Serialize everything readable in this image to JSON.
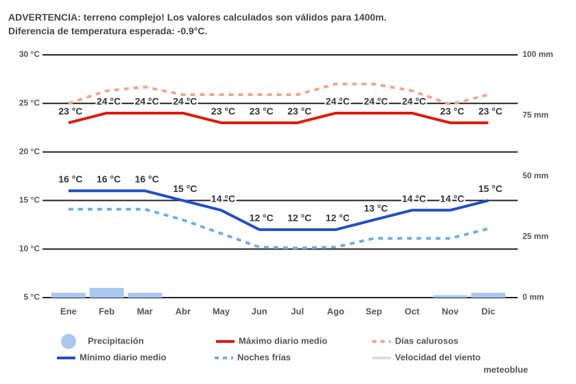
{
  "chart_data": {
    "type": "line",
    "title": "ADVERTENCIA: terreno complejo! Los valores calculados son válidos para 1400m.",
    "subtitle": "Diferencia de temperatura esperada: -0.9°C.",
    "categories": [
      "Ene",
      "Feb",
      "Mar",
      "Abr",
      "May",
      "Jun",
      "Jul",
      "Ago",
      "Sep",
      "Oct",
      "Nov",
      "Dic"
    ],
    "ylim": [
      5,
      30
    ],
    "yticks": [
      {
        "value": 5,
        "label": "5 °C"
      },
      {
        "value": 10,
        "label": "10 °C"
      },
      {
        "value": 15,
        "label": "15 °C"
      },
      {
        "value": 20,
        "label": "20 °C"
      },
      {
        "value": 25,
        "label": "25 °C"
      },
      {
        "value": 30,
        "label": "30 °C"
      }
    ],
    "y2lim": [
      0,
      100
    ],
    "y2ticks": [
      {
        "value": 0,
        "label": "0 mm"
      },
      {
        "value": 25,
        "label": "25 mm"
      },
      {
        "value": 50,
        "label": "50 mm"
      },
      {
        "value": 75,
        "label": "75 mm"
      },
      {
        "value": 100,
        "label": "100 mm"
      }
    ],
    "grid": true,
    "series": [
      {
        "name": "Precipitación",
        "type": "bar",
        "axis": "y2",
        "color": "#a9c8f0",
        "values": [
          2,
          4,
          2,
          0,
          0,
          0,
          0,
          0,
          0,
          0,
          1,
          2
        ]
      },
      {
        "name": "Máximo diario medio",
        "color": "#e3170a",
        "values": [
          23,
          24,
          24,
          24,
          23,
          23,
          23,
          24,
          24,
          24,
          23,
          23
        ],
        "value_labels": [
          "23 °C",
          "24 °C",
          "24 °C",
          "24 °C",
          "23 °C",
          "23 °C",
          "23 °C",
          "24 °C",
          "24 °C",
          "24 °C",
          "23 °C",
          "23 °C"
        ]
      },
      {
        "name": "Días calurosos",
        "color": "#f5a58c",
        "dashed": true,
        "values": [
          25,
          26.3,
          26.7,
          25.9,
          25.9,
          25.9,
          25.9,
          27,
          27,
          26.3,
          24.9,
          25.9
        ]
      },
      {
        "name": "Mínimo diario medio",
        "color": "#1f4fc4",
        "values": [
          16,
          16,
          16,
          15,
          14,
          12,
          12,
          12,
          13,
          14,
          14,
          15
        ],
        "value_labels": [
          "16 °C",
          "16 °C",
          "16 °C",
          "15 °C",
          "14 °C",
          "12 °C",
          "12 °C",
          "12 °C",
          "13 °C",
          "14 °C",
          "14 °C",
          "15 °C"
        ]
      },
      {
        "name": "Noches frías",
        "color": "#6aaee8",
        "dashed": true,
        "values": [
          14.1,
          14.1,
          14.1,
          13,
          11.6,
          10.2,
          10.1,
          10.2,
          11.1,
          11.1,
          11.1,
          12.1
        ]
      }
    ],
    "wind_legend": {
      "name": "Velocidad del viento",
      "color": "#dddddd"
    },
    "credit": "meteoblue"
  }
}
